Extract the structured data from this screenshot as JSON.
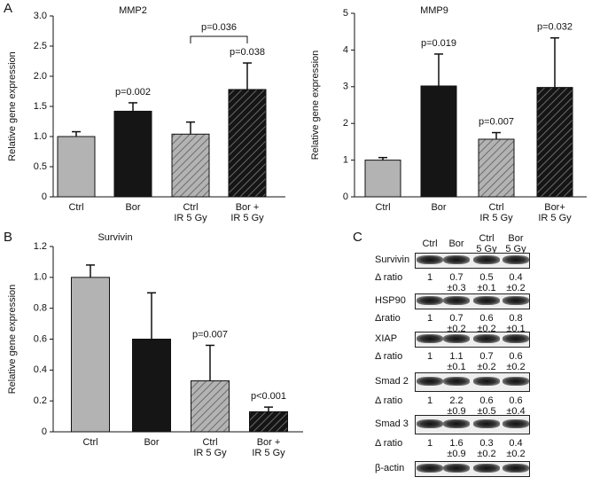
{
  "panel_labels": [
    "A",
    "B",
    "C"
  ],
  "chart_data": [
    {
      "type": "bar",
      "title": "MMP2",
      "y_label": "Relative gene expression",
      "categories": [
        "Ctrl",
        "Bor",
        "Ctrl\nIR 5 Gy",
        "Bor +\nIR 5 Gy"
      ],
      "values": [
        1.0,
        1.42,
        1.04,
        1.78
      ],
      "errors": [
        0.08,
        0.14,
        0.2,
        0.44
      ],
      "colors": [
        "#b3b3b3",
        "#151515",
        "#b3b3b3",
        "#151515"
      ],
      "hatched": [
        false,
        false,
        true,
        true
      ],
      "annotations": [
        null,
        "p=0.002",
        null,
        "p=0.038"
      ],
      "bracket_label": "p=0.036",
      "ylim": [
        0,
        3
      ],
      "yticks": [
        0,
        0.5,
        {
          "value": 1,
          "label": "1.0"
        },
        1.5,
        {
          "value": 2,
          "label": "2.0"
        },
        2.5,
        {
          "value": 3,
          "label": "3.0"
        }
      ]
    },
    {
      "type": "bar",
      "title": "MMP9",
      "y_label": "Relative gene expression",
      "categories": [
        "Ctrl",
        "Bor",
        "Ctrl\nIR 5 Gy",
        "Bor+\nIR 5 Gy"
      ],
      "values": [
        1.0,
        3.02,
        1.57,
        2.98
      ],
      "errors": [
        0.07,
        0.87,
        0.18,
        1.35
      ],
      "colors": [
        "#b3b3b3",
        "#151515",
        "#b3b3b3",
        "#151515"
      ],
      "hatched": [
        false,
        false,
        true,
        true
      ],
      "annotations": [
        null,
        "p=0.019",
        "p=0.007",
        "p=0.032"
      ],
      "ylim": [
        0,
        5
      ],
      "yticks": [
        0,
        1,
        2,
        3,
        4,
        5
      ]
    },
    {
      "type": "bar",
      "title": "Survivin",
      "y_label": "Relative gene expression",
      "categories": [
        "Ctrl",
        "Bor",
        "Ctrl\nIR 5 Gy",
        "Bor +\nIR 5 Gy"
      ],
      "values": [
        1.0,
        0.6,
        0.33,
        0.13
      ],
      "errors": [
        0.08,
        0.3,
        0.23,
        0.03
      ],
      "colors": [
        "#b3b3b3",
        "#151515",
        "#b3b3b3",
        "#151515"
      ],
      "hatched": [
        false,
        false,
        true,
        true
      ],
      "annotations": [
        null,
        null,
        "p=0.007",
        "p<0.001"
      ],
      "ylim": [
        0,
        1.2
      ],
      "yticks": [
        0,
        0.2,
        0.4,
        0.6,
        0.8,
        {
          "value": 1,
          "label": "1.0"
        },
        1.2
      ]
    }
  ],
  "blot": {
    "lanes": [
      "Ctrl",
      "Bor",
      "Ctrl\n5 Gy",
      "Bor\n5 Gy"
    ],
    "rows": [
      {
        "protein": "Survivin",
        "ratio_label": "Δ ratio",
        "ratios": [
          "1",
          "0.7\n±0.3",
          "0.5\n±0.1",
          "0.4\n±0.2"
        ]
      },
      {
        "protein": "HSP90",
        "ratio_label": "Δratio",
        "ratios": [
          "1",
          "0.7\n±0.2",
          "0.6\n±0.2",
          "0.8\n±0.1"
        ]
      },
      {
        "protein": "XIAP",
        "ratio_label": "Δ ratio",
        "ratios": [
          "1",
          "1.1\n±0.1",
          "0.7\n±0.2",
          "0.6\n±0.2"
        ]
      },
      {
        "protein": "Smad 2",
        "ratio_label": "Δ ratio",
        "ratios": [
          "1",
          "2.2\n±0.9",
          "0.6\n±0.5",
          "0.6\n±0.4"
        ]
      },
      {
        "protein": "Smad 3",
        "ratio_label": "Δ ratio",
        "ratios": [
          "1",
          "1.6\n±0.9",
          "0.3\n±0.2",
          "0.4\n±0.2"
        ]
      },
      {
        "protein": "β-actin"
      }
    ]
  }
}
